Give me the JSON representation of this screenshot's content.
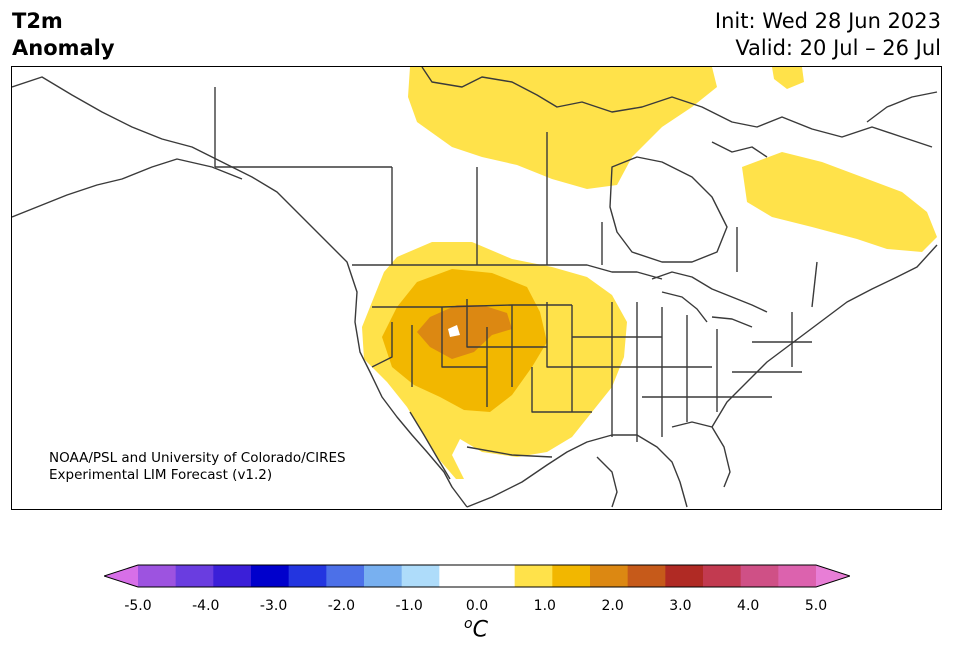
{
  "title": {
    "left_line1": "T2m",
    "left_line2": "Anomaly",
    "init": "Init: Wed 28 Jun 2023",
    "valid": "Valid: 20 Jul – 26 Jul"
  },
  "credit": {
    "line1": "NOAA/PSL and University of Colorado/CIRES",
    "line2": "Experimental LIM Forecast (v1.2)"
  },
  "colorbar": {
    "units_base": "C",
    "units_sup": "o",
    "colors": [
      "#d76fe8",
      "#9d53e0",
      "#6a3de0",
      "#3b1fd8",
      "#0000cc",
      "#2335e0",
      "#4c70e8",
      "#78b0f0",
      "#aedcfa",
      "#ffffff",
      "#ffffff",
      "#ffe24a",
      "#f2b700",
      "#dc8812",
      "#c65a1a",
      "#b02a24",
      "#c23a50",
      "#cf5086",
      "#dc62ae",
      "#e87ed6"
    ],
    "ticks": [
      "-5.0",
      "-4.0",
      "-3.0",
      "-2.0",
      "-1.0",
      "0.0",
      "1.0",
      "2.0",
      "3.0",
      "4.0",
      "5.0"
    ]
  }
}
